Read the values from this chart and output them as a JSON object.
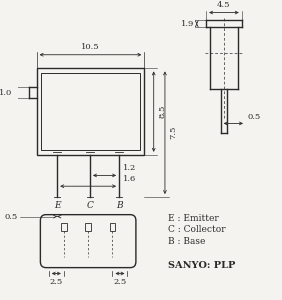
{
  "bg_color": "#f5f3ef",
  "line_color": "#2a2a2a",
  "text_color": "#2a2a2a",
  "font_size": 6.5,
  "font_size_small": 6,
  "labels": {
    "E": "E",
    "C": "C",
    "B": "B",
    "E_full": "E : Emitter",
    "C_full": "C : Collector",
    "B_full": "B : Base",
    "sanyo": "SANYO: PLP"
  },
  "dims": {
    "w105": "10.5",
    "h85": "8.5",
    "h75": "7.5",
    "h10": "1.0",
    "h05": "0.5",
    "h12": "1.2",
    "h16": "1.6",
    "d45": "4.5",
    "d19": "1.9",
    "d05": "0.5",
    "d25l": "2.5",
    "d25r": "2.5"
  }
}
